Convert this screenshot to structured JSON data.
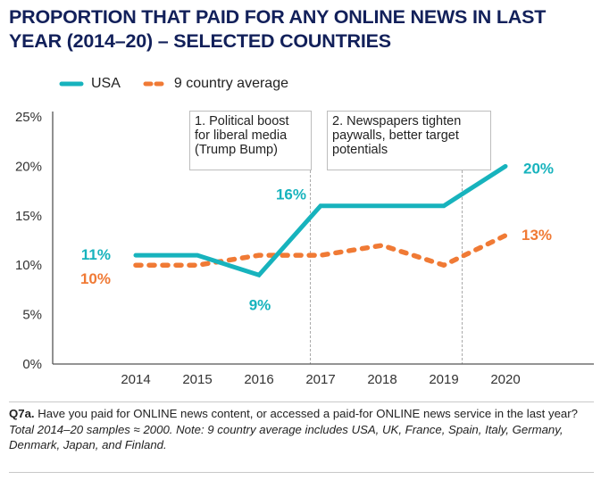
{
  "title": "PROPORTION THAT PAID FOR ANY ONLINE NEWS IN LAST YEAR (2014–20) – SELECTED COUNTRIES",
  "legend": {
    "usa": "USA",
    "average": "9 country average"
  },
  "colors": {
    "usa": "#17b3bd",
    "average": "#f07a35",
    "title": "#12205a",
    "axis": "#555555",
    "annotation_border": "#bdbdbd",
    "guide": "#aaaaaa"
  },
  "annotations": [
    {
      "text": "1. Political boost for liberal media (Trump Bump)",
      "lines": [
        "1. Political boost",
        "for liberal media",
        "(Trump Bump)"
      ],
      "after_year": "2016"
    },
    {
      "text": "2. Newspapers tighten paywalls, better target potentials",
      "lines": [
        "2. Newspapers tighten",
        "paywalls, better target",
        "potentials"
      ],
      "after_year": "2019"
    }
  ],
  "note": {
    "question_id": "Q7a.",
    "question": " Have you paid for ONLINE news content, or accessed a paid-for ONLINE news service in the last year? ",
    "details": "Total 2014–20 samples ≈ 2000.  Note: 9 country average includes USA, UK, France, Spain, Italy, Germany, Denmark, Japan, and Finland."
  },
  "chart_data": {
    "type": "line",
    "title": "PROPORTION THAT PAID FOR ANY ONLINE NEWS IN LAST YEAR (2014–20) – SELECTED COUNTRIES",
    "xlabel": "",
    "ylabel": "",
    "x": [
      "2014",
      "2015",
      "2016",
      "2017",
      "2018",
      "2019",
      "2020"
    ],
    "ylim": [
      0,
      25
    ],
    "yticks": [
      0,
      5,
      10,
      15,
      20,
      25
    ],
    "ytick_labels": [
      "0%",
      "5%",
      "10%",
      "15%",
      "20%",
      "25%"
    ],
    "grid": false,
    "legend_position": "top-left",
    "series": [
      {
        "name": "USA",
        "style": "solid",
        "values": [
          11,
          11,
          9,
          16,
          16,
          16,
          20
        ]
      },
      {
        "name": "9 country average",
        "style": "dashed",
        "values": [
          10,
          10,
          11,
          11,
          12,
          10,
          13
        ]
      }
    ],
    "data_labels": [
      {
        "series": "USA",
        "x": "2014",
        "text": "11%"
      },
      {
        "series": "9 country average",
        "x": "2014",
        "text": "10%"
      },
      {
        "series": "USA",
        "x": "2016",
        "text": "9%"
      },
      {
        "series": "USA",
        "x": "2017",
        "text": "16%"
      },
      {
        "series": "USA",
        "x": "2020",
        "text": "20%"
      },
      {
        "series": "9 country average",
        "x": "2020",
        "text": "13%"
      }
    ],
    "annotations": [
      {
        "text": "1. Political boost for liberal media (Trump Bump)",
        "between": [
          "2016",
          "2017"
        ]
      },
      {
        "text": "2. Newspapers tighten paywalls, better target potentials",
        "between": [
          "2019",
          "2020"
        ]
      }
    ]
  }
}
